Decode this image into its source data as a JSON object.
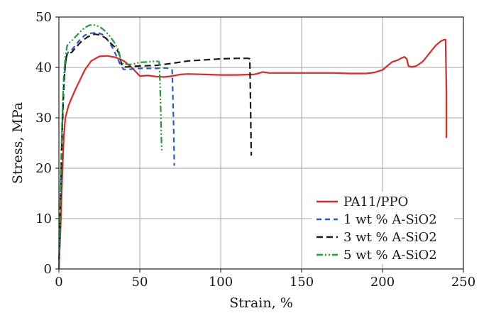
{
  "chart_data": {
    "type": "line",
    "xlabel": "Strain, %",
    "ylabel": "Stress, MPa",
    "xlim": [
      0,
      250
    ],
    "ylim": [
      0,
      50
    ],
    "xticks": [
      0,
      50,
      100,
      150,
      200,
      250
    ],
    "yticks": [
      0,
      10,
      20,
      30,
      40,
      50
    ],
    "grid": true,
    "legend_position": "bottom-right",
    "series": [
      {
        "name": "PA11/PPO",
        "color": "#e32626",
        "dash": "solid",
        "x": [
          0,
          1,
          2,
          3,
          4,
          6,
          8,
          10,
          13,
          16,
          20,
          25,
          30,
          35,
          38,
          40,
          42,
          45,
          48,
          50,
          55,
          60,
          65,
          70,
          75,
          80,
          90,
          100,
          110,
          120,
          122,
          124,
          126,
          130,
          140,
          150,
          160,
          170,
          180,
          190,
          195,
          200,
          203,
          206,
          209,
          212,
          213.5,
          215,
          216,
          218,
          221,
          225,
          229,
          233,
          236,
          238,
          239,
          239.5,
          239.5
        ],
        "y": [
          0,
          8,
          18,
          26,
          30,
          32.5,
          34,
          35.5,
          37.5,
          39.5,
          41.3,
          42.2,
          42.3,
          42,
          41.6,
          41.3,
          40.8,
          40,
          39,
          38.3,
          38.4,
          38.2,
          38.1,
          38.3,
          38.6,
          38.7,
          38.6,
          38.5,
          38.5,
          38.6,
          38.7,
          38.9,
          39.1,
          38.9,
          38.9,
          38.9,
          38.9,
          38.9,
          38.8,
          38.8,
          39,
          39.5,
          40.3,
          41.1,
          41.4,
          41.9,
          42.1,
          41.7,
          40.3,
          40.1,
          40.3,
          41.2,
          42.8,
          44.4,
          45.2,
          45.5,
          45.5,
          35,
          26
        ]
      },
      {
        "name": "1 wt % A-SiO2",
        "color": "#2f5cc4",
        "dash": "7 5",
        "x": [
          0,
          1,
          2,
          3,
          4,
          5,
          6,
          8,
          10,
          13,
          16,
          20,
          24,
          27,
          30,
          33,
          36,
          38,
          40,
          43,
          50,
          60,
          65,
          68,
          70,
          70.5,
          71,
          71.3
        ],
        "y": [
          0,
          15,
          28,
          36,
          40.5,
          42.5,
          43.2,
          43.5,
          44.3,
          45.5,
          46.4,
          46.8,
          46.9,
          46.5,
          45.5,
          44,
          42,
          40.5,
          39.6,
          39.6,
          39.8,
          39.8,
          39.9,
          39.8,
          39.5,
          34,
          27,
          20.5
        ]
      },
      {
        "name": "3 wt % A-SiO2",
        "color": "#1a1a1a",
        "dash": "9 5",
        "x": [
          0,
          1,
          2,
          3,
          4,
          5,
          6,
          8,
          10,
          14,
          18,
          22,
          26,
          29,
          32,
          35,
          37,
          38,
          39,
          40,
          42,
          45,
          50,
          60,
          70,
          80,
          90,
          100,
          110,
          115,
          117,
          118,
          118.3,
          118.6,
          118.9
        ],
        "y": [
          0,
          14,
          27,
          36,
          41,
          42.6,
          42.8,
          43,
          43.8,
          45.2,
          46.1,
          46.6,
          46.4,
          45.8,
          44.8,
          43.9,
          42.9,
          41.6,
          40.4,
          40.1,
          40.1,
          40.2,
          40.3,
          40.4,
          40.8,
          41.3,
          41.5,
          41.7,
          41.8,
          41.8,
          41.8,
          41.7,
          36,
          29,
          22.5
        ]
      },
      {
        "name": "5 wt % A-SiO2",
        "color": "#1f9b3c",
        "dash": "9 3 2 3 2 3",
        "x": [
          0,
          1,
          2,
          3,
          4,
          5,
          6,
          8,
          10,
          13,
          16,
          19,
          22,
          25,
          28,
          31,
          34,
          37,
          38.5,
          40,
          45,
          50,
          55,
          58,
          61,
          62,
          62.5,
          63,
          63.3,
          63.6
        ],
        "y": [
          0,
          16,
          30,
          38,
          42,
          44.2,
          44.8,
          45.3,
          46,
          47,
          47.9,
          48.4,
          48.4,
          48.1,
          47.4,
          46.4,
          45.1,
          43.3,
          41.1,
          40.6,
          40.6,
          41,
          41.1,
          41.2,
          41.2,
          41.1,
          37,
          31,
          26.5,
          23.2
        ]
      }
    ]
  }
}
